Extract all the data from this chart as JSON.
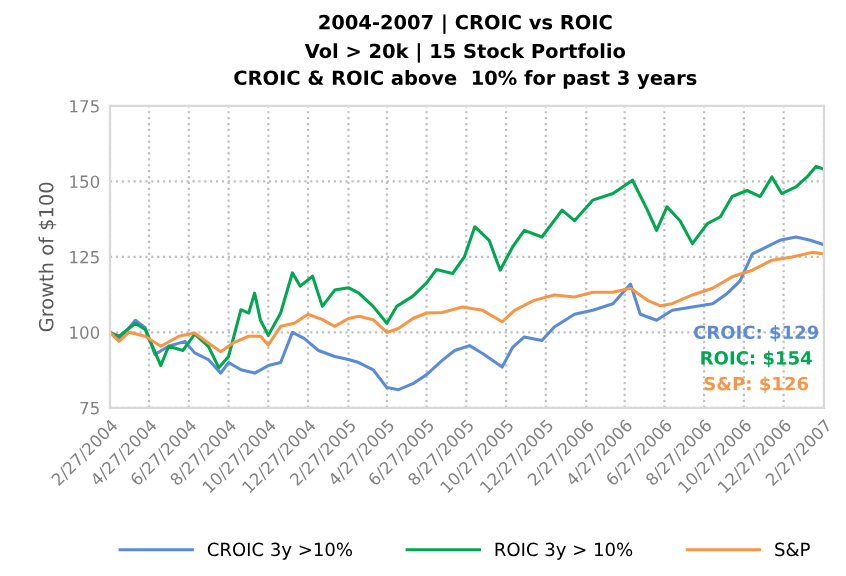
{
  "chart_data": {
    "type": "line",
    "title": "2004-2007 | CROIC vs ROIC",
    "subtitle": "Vol > 20k | 15 Stock Portfolio\nCROIC & ROIC above  10% for past 3 years",
    "ylabel": "Growth of $100",
    "ylim": [
      75,
      175
    ],
    "yticks": [
      75,
      100,
      125,
      150,
      175
    ],
    "xlim": [
      "2004-02-27",
      "2007-02-27"
    ],
    "xticks": [
      {
        "value": "2004-02-27",
        "label": "2/27/2004"
      },
      {
        "value": "2004-04-27",
        "label": "4/27/2004"
      },
      {
        "value": "2004-06-27",
        "label": "6/27/2004"
      },
      {
        "value": "2004-08-27",
        "label": "8/27/2004"
      },
      {
        "value": "2004-10-27",
        "label": "10/27/2004"
      },
      {
        "value": "2004-12-27",
        "label": "12/27/2004"
      },
      {
        "value": "2005-02-27",
        "label": "2/27/2005"
      },
      {
        "value": "2005-04-27",
        "label": "4/27/2005"
      },
      {
        "value": "2005-06-27",
        "label": "6/27/2005"
      },
      {
        "value": "2005-08-27",
        "label": "8/27/2005"
      },
      {
        "value": "2005-10-27",
        "label": "10/27/2005"
      },
      {
        "value": "2005-12-27",
        "label": "12/27/2005"
      },
      {
        "value": "2006-02-27",
        "label": "2/27/2006"
      },
      {
        "value": "2006-04-27",
        "label": "4/27/2006"
      },
      {
        "value": "2006-06-27",
        "label": "6/27/2006"
      },
      {
        "value": "2006-08-27",
        "label": "8/27/2006"
      },
      {
        "value": "2006-10-27",
        "label": "10/27/2006"
      },
      {
        "value": "2006-12-27",
        "label": "12/27/2006"
      },
      {
        "value": "2007-02-27",
        "label": "2/27/2007"
      }
    ],
    "grid": true,
    "legend": "bottom",
    "marker": "none",
    "line_style": "solid",
    "series": [
      {
        "name": "CROIC 3y >10%",
        "color": "#5b8bd6",
        "x": [
          "2004-02-27",
          "2004-03-12",
          "2004-04-06",
          "2004-04-21",
          "2004-05-06",
          "2004-05-27",
          "2004-06-21",
          "2004-07-06",
          "2004-07-27",
          "2004-08-15",
          "2004-08-27",
          "2004-09-15",
          "2004-10-06",
          "2004-10-27",
          "2004-11-15",
          "2004-12-03",
          "2004-12-21",
          "2005-01-12",
          "2005-02-06",
          "2005-02-27",
          "2005-03-15",
          "2005-04-06",
          "2005-04-27",
          "2005-05-15",
          "2005-06-06",
          "2005-06-27",
          "2005-07-21",
          "2005-08-09",
          "2005-09-01",
          "2005-09-21",
          "2005-10-21",
          "2005-11-06",
          "2005-11-24",
          "2005-12-21",
          "2006-01-09",
          "2006-02-09",
          "2006-03-09",
          "2006-04-09",
          "2006-05-06",
          "2006-05-21",
          "2006-06-15",
          "2006-07-09",
          "2006-08-09",
          "2006-09-09",
          "2006-10-01",
          "2006-10-21",
          "2006-11-09",
          "2006-12-01",
          "2006-12-21",
          "2007-01-15",
          "2007-02-06",
          "2007-02-27"
        ],
        "values": [
          100,
          97.6,
          104,
          101.5,
          92.7,
          95.4,
          97,
          93.2,
          91,
          86.5,
          90,
          87.6,
          86.5,
          89,
          90,
          100,
          98,
          94,
          92,
          91,
          90,
          87.6,
          81.7,
          81,
          83,
          86,
          90.7,
          94,
          95.6,
          93,
          88.5,
          95,
          98.5,
          97.3,
          101.8,
          106,
          107.3,
          109.5,
          116,
          106,
          104,
          107.3,
          108.4,
          109.5,
          112.8,
          117,
          126,
          128.3,
          130.5,
          131.6,
          130.5,
          129
        ]
      },
      {
        "name": "ROIC 3y > 10%",
        "color": "#00a650",
        "x": [
          "2004-02-27",
          "2004-03-12",
          "2004-04-06",
          "2004-04-21",
          "2004-05-15",
          "2004-05-27",
          "2004-06-18",
          "2004-07-06",
          "2004-07-27",
          "2004-08-12",
          "2004-08-27",
          "2004-09-15",
          "2004-09-27",
          "2004-10-06",
          "2004-10-15",
          "2004-10-27",
          "2004-11-15",
          "2004-12-03",
          "2004-12-15",
          "2005-01-03",
          "2005-01-18",
          "2005-02-06",
          "2005-02-27",
          "2005-03-15",
          "2005-04-06",
          "2005-04-27",
          "2005-05-12",
          "2005-06-06",
          "2005-06-27",
          "2005-07-12",
          "2005-08-06",
          "2005-08-24",
          "2005-09-09",
          "2005-10-01",
          "2005-10-18",
          "2005-11-06",
          "2005-11-24",
          "2005-12-21",
          "2006-01-21",
          "2006-02-09",
          "2006-03-09",
          "2006-04-09",
          "2006-05-09",
          "2006-06-01",
          "2006-06-15",
          "2006-07-01",
          "2006-07-21",
          "2006-08-09",
          "2006-09-01",
          "2006-09-21",
          "2006-10-09",
          "2006-11-01",
          "2006-11-21",
          "2006-12-09",
          "2006-12-24",
          "2007-01-15",
          "2007-02-01",
          "2007-02-15",
          "2007-02-27"
        ],
        "values": [
          100,
          98.7,
          103,
          101,
          89,
          95.4,
          94,
          99.4,
          95.4,
          88.3,
          92,
          107.5,
          106.4,
          113,
          104,
          99,
          106.4,
          119.7,
          115.3,
          118.6,
          108.6,
          114,
          114.8,
          113,
          108.6,
          103,
          108.6,
          112,
          116.4,
          120.8,
          119.5,
          125,
          135,
          130.5,
          120.6,
          128.3,
          133.8,
          131.6,
          140.5,
          137,
          143.8,
          146,
          150.4,
          140.5,
          133.8,
          141.6,
          137,
          129.4,
          136,
          138.3,
          145,
          147,
          145,
          151.5,
          146,
          148.2,
          151.5,
          155,
          154
        ]
      },
      {
        "name": "S&P",
        "color": "#f79646",
        "x": [
          "2004-02-27",
          "2004-03-12",
          "2004-03-27",
          "2004-04-21",
          "2004-05-15",
          "2004-06-12",
          "2004-07-06",
          "2004-07-27",
          "2004-08-15",
          "2004-09-03",
          "2004-09-27",
          "2004-10-15",
          "2004-10-27",
          "2004-11-15",
          "2004-12-06",
          "2004-12-27",
          "2005-01-18",
          "2005-02-06",
          "2005-02-27",
          "2005-03-15",
          "2005-04-06",
          "2005-04-27",
          "2005-05-15",
          "2005-06-06",
          "2005-06-27",
          "2005-07-21",
          "2005-08-21",
          "2005-09-21",
          "2005-10-21",
          "2005-11-09",
          "2005-12-09",
          "2006-01-09",
          "2006-02-09",
          "2006-03-09",
          "2006-04-09",
          "2006-05-06",
          "2006-06-01",
          "2006-06-21",
          "2006-07-09",
          "2006-08-09",
          "2006-09-09",
          "2006-10-09",
          "2006-11-09",
          "2006-12-09",
          "2007-01-09",
          "2007-02-09",
          "2007-02-27"
        ],
        "values": [
          100,
          97,
          100,
          98.7,
          95.4,
          98.7,
          99.8,
          96.5,
          93.6,
          96.5,
          98.7,
          98.7,
          95.8,
          102,
          103,
          106,
          104.2,
          102,
          104.6,
          105.3,
          104.2,
          100,
          101.3,
          104.6,
          106.4,
          106.6,
          108.4,
          107.3,
          103.5,
          107.3,
          110.6,
          112.4,
          111.7,
          113.3,
          113.3,
          114.6,
          110.6,
          108.8,
          109.5,
          112.4,
          114.6,
          118.4,
          120.6,
          123.9,
          125,
          126.5,
          126
        ]
      }
    ],
    "annotations": [
      "CROIC: $129",
      "ROIC: $154",
      "S&P: $126"
    ]
  }
}
